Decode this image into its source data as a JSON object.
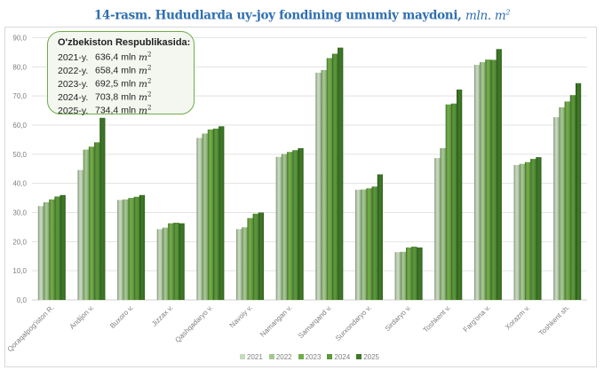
{
  "title": {
    "main": "14-rasm. Hududlarda uy-joy fondining umumiy maydoni,",
    "unit": "mln. m",
    "unit_sup": "2"
  },
  "callout": {
    "heading": "O'zbekiston Respublikasida:",
    "rows": [
      {
        "year": "2021-y.",
        "value": "636,4 mln",
        "unit": "m",
        "sup": "2"
      },
      {
        "year": "2022-y.",
        "value": "658,4 mln",
        "unit": "m",
        "sup": "2"
      },
      {
        "year": "2023-y.",
        "value": "692,5 mln",
        "unit": "m",
        "sup": "2"
      },
      {
        "year": "2024-y.",
        "value": "703,8 mln",
        "unit": "m",
        "sup": "2"
      },
      {
        "year": "2025-y.",
        "value": "734,4 mln",
        "unit": "m",
        "sup": "2"
      }
    ]
  },
  "chart_data": {
    "type": "bar",
    "title": "14-rasm. Hududlarda uy-joy fondining umumiy maydoni, mln. m2",
    "xlabel": "",
    "ylabel": "",
    "ylim": [
      0,
      90
    ],
    "yticks": [
      "0,0",
      "10,0",
      "20,0",
      "30,0",
      "40,0",
      "50,0",
      "60,0",
      "70,0",
      "80,0",
      "90,0"
    ],
    "grid": true,
    "legend_position": "bottom",
    "categories": [
      "Qoraqalpog'iston R.",
      "Andijon v.",
      "Buxoro v.",
      "Jizzax v.",
      "Qashqadaryo v.",
      "Navoiy v.",
      "Namangan v.",
      "Samarqand v.",
      "Surxondaryo v.",
      "Sirdaryo v.",
      "Toshkent v.",
      "Farg'ona v.",
      "Xorazm v.",
      "Toshkent sh."
    ],
    "series": [
      {
        "name": "2021",
        "color": "#c5dbbb",
        "values": [
          32.2,
          44.6,
          34.3,
          24.3,
          55.6,
          24.3,
          49.1,
          78.0,
          37.8,
          16.4,
          48.7,
          80.7,
          46.3,
          62.7
        ]
      },
      {
        "name": "2022",
        "color": "#a3c98e",
        "values": [
          33.5,
          51.6,
          34.5,
          24.8,
          57.1,
          24.9,
          50.1,
          78.9,
          37.9,
          16.5,
          52.1,
          81.6,
          46.7,
          66.1
        ]
      },
      {
        "name": "2023",
        "color": "#70ad47",
        "values": [
          34.5,
          52.6,
          35.0,
          26.3,
          58.5,
          28.1,
          50.8,
          83.0,
          38.3,
          18.0,
          67.1,
          82.5,
          47.3,
          68.1
        ]
      },
      {
        "name": "2024",
        "color": "#5a9a3a",
        "values": [
          35.5,
          54.1,
          35.4,
          26.5,
          58.8,
          29.6,
          51.4,
          84.5,
          38.9,
          18.3,
          67.4,
          82.4,
          48.4,
          70.3
        ]
      },
      {
        "name": "2025",
        "color": "#3e7a26",
        "values": [
          36.0,
          62.5,
          36.0,
          26.3,
          59.6,
          30.0,
          52.1,
          86.6,
          43.1,
          18.0,
          72.2,
          86.1,
          49.0,
          74.4
        ]
      }
    ]
  }
}
